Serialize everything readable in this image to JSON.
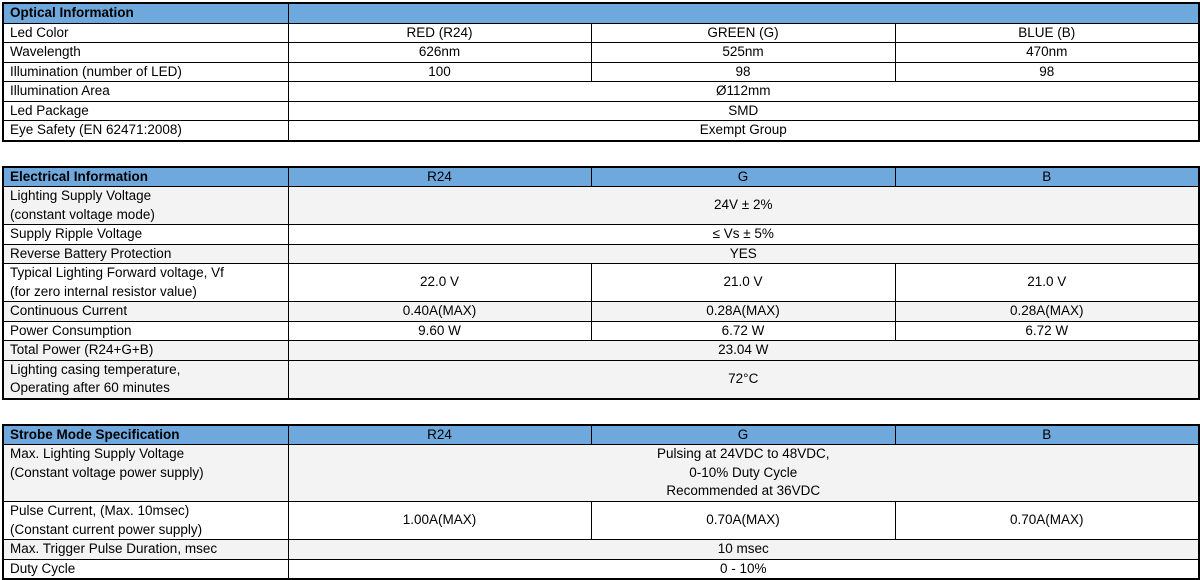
{
  "palette": {
    "header_blue": "#6fa8dc",
    "shaded_row_gray": "#f3f3f3",
    "border_black": "#000000",
    "text_black": "#000000"
  },
  "optical": {
    "title": "Optical Information",
    "rows": {
      "led_color": {
        "label": "Led Color",
        "r24": "RED (R24)",
        "g": "GREEN (G)",
        "b": "BLUE (B)"
      },
      "wavelength": {
        "label": "Wavelength",
        "r24": "626nm",
        "g": "525nm",
        "b": "470nm"
      },
      "illumination": {
        "label": "Illumination (number of LED)",
        "r24": "100",
        "g": "98",
        "b": "98"
      },
      "illumination_area": {
        "label": "Illumination Area",
        "value": "Ø112mm"
      },
      "led_package": {
        "label": "Led Package",
        "value": "SMD"
      },
      "eye_safety": {
        "label": "Eye Safety (EN 62471:2008)",
        "value": "Exempt Group"
      }
    }
  },
  "electrical": {
    "title": "Electrical Information",
    "col_headers": {
      "r24": "R24",
      "g": "G",
      "b": "B"
    },
    "rows": {
      "supply_voltage": {
        "label": "Lighting Supply Voltage\n(constant voltage mode)",
        "value": "24V ± 2%"
      },
      "ripple_voltage": {
        "label": "Supply Ripple Voltage",
        "value": "≤ Vs ± 5%"
      },
      "reverse_battery": {
        "label": "Reverse Battery Protection",
        "value": "YES"
      },
      "forward_voltage": {
        "label": "Typical Lighting Forward voltage, Vf\n(for zero internal resistor value)",
        "r24": "22.0 V",
        "g": "21.0 V",
        "b": "21.0 V"
      },
      "continuous_current": {
        "label": "Continuous Current",
        "r24": "0.40A(MAX)",
        "g": "0.28A(MAX)",
        "b": "0.28A(MAX)"
      },
      "power_consumption": {
        "label": "Power Consumption",
        "r24": "9.60 W",
        "g": "6.72 W",
        "b": "6.72 W"
      },
      "total_power": {
        "label": "Total Power (R24+G+B)",
        "value": "23.04 W"
      },
      "casing_temperature": {
        "label": "Lighting casing temperature,\nOperating after 60 minutes",
        "value": "72°C"
      }
    }
  },
  "strobe": {
    "title": "Strobe Mode Specification",
    "col_headers": {
      "r24": "R24",
      "g": "G",
      "b": "B"
    },
    "rows": {
      "max_supply_voltage": {
        "label": "Max. Lighting Supply Voltage\n(Constant voltage power supply)",
        "value": "Pulsing at 24VDC to 48VDC,\n0-10% Duty Cycle\nRecommended at 36VDC"
      },
      "pulse_current": {
        "label": "Pulse Current, (Max. 10msec)\n(Constant current power supply)",
        "r24": "1.00A(MAX)",
        "g": "0.70A(MAX)",
        "b": "0.70A(MAX)"
      },
      "trigger_pulse": {
        "label": "Max. Trigger Pulse Duration, msec",
        "value": "10 msec"
      },
      "duty_cycle": {
        "label": "Duty Cycle",
        "value": "0 - 10%"
      }
    }
  }
}
